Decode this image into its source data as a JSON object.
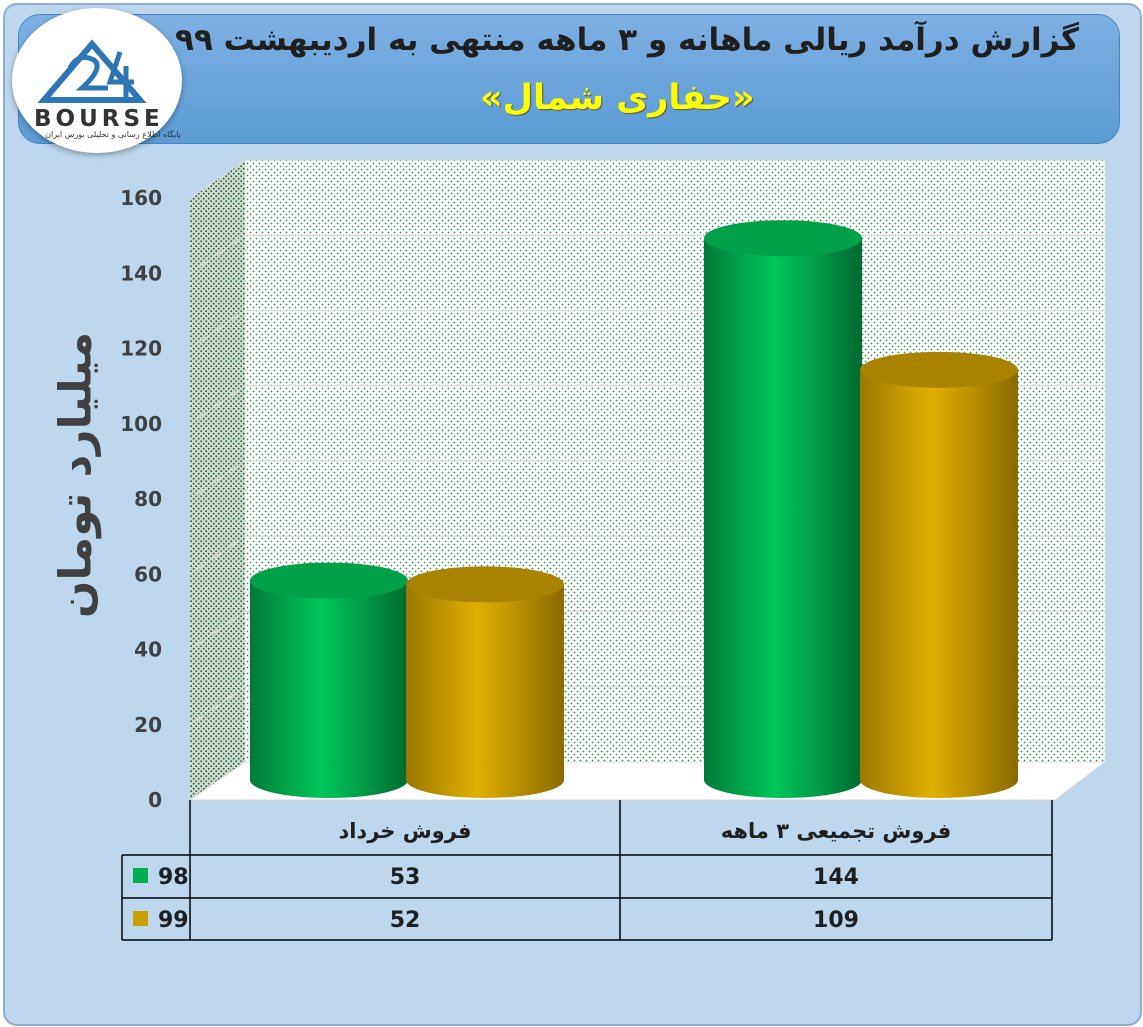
{
  "title": "گزارش درآمد ریالی ماهانه و ۳ ماهه منتهی به اردیبهشت ۹۹",
  "subtitle": "«حفاری شمال»",
  "logo": {
    "text": "BOURSE",
    "sub": "پایگاه اطلاع رسانی و تحلیلی بورس ایران"
  },
  "colors": {
    "series_98": "#00b050",
    "series_99": "#c9a000",
    "banner": "#5b9bd5",
    "frame": "#bdd7ee"
  },
  "chart_data": {
    "type": "bar",
    "title": "گزارش درآمد ریالی ماهانه و ۳ ماهه منتهی به اردیبهشت ۹۹",
    "ylabel": "میلیارد تومان",
    "xlabel": "",
    "ylim": [
      0,
      160
    ],
    "yticks": [
      "0",
      "20",
      "40",
      "60",
      "80",
      "100",
      "120",
      "140",
      "160"
    ],
    "categories": [
      "فروش خرداد",
      "فروش تجمیعی ۳ ماهه"
    ],
    "series": [
      {
        "name": "98",
        "values": [
          53,
          144
        ],
        "color": "#00b050"
      },
      {
        "name": "99",
        "values": [
          52,
          109
        ],
        "color": "#c9a000"
      }
    ],
    "grid": true,
    "legend": "data-table"
  }
}
